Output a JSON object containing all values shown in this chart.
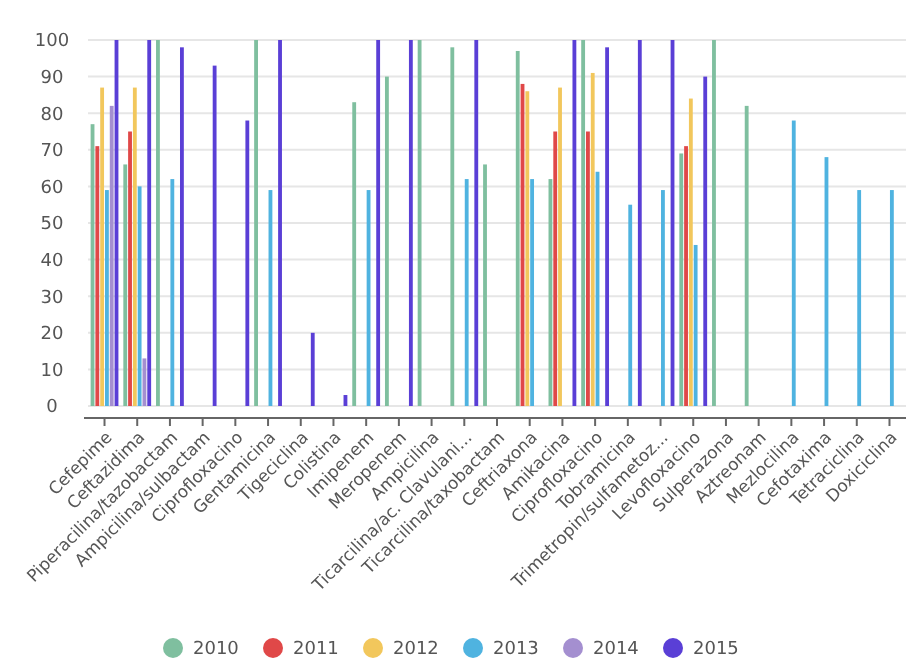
{
  "chart_data": {
    "type": "bar",
    "categories": [
      "Cefepime",
      "Ceftazidima",
      "Piperacilina/tazobactam",
      "Ampicilina/sulbactam",
      "Ciprofloxacino",
      "Gentamicina",
      "Tigeciclina",
      "Colistina",
      "Imipenem",
      "Meropenem",
      "Ampicilina",
      "Ticarcilina/ac. Clavulani...",
      "Ticarcilina/taxobactam",
      "Ceftriaxona",
      "Amikacina",
      "Ciprofloxacino",
      "Tobramicina",
      "Trimetropin/sulfametoz...",
      "Levofloxacino",
      "Sulperazona",
      "Aztreonam",
      "Mezlocilina",
      "Cefotaxima",
      "Tetraciclina",
      "Doxiciclina"
    ],
    "series": [
      {
        "name": "2010",
        "color": "#7fbf9f",
        "values": [
          77,
          66,
          100,
          null,
          null,
          100,
          null,
          null,
          83,
          90,
          100,
          98,
          66,
          97,
          62,
          100,
          null,
          null,
          69,
          100,
          82,
          null,
          null,
          null,
          null
        ]
      },
      {
        "name": "2011",
        "color": "#e04848",
        "values": [
          71,
          75,
          null,
          null,
          null,
          null,
          null,
          null,
          null,
          null,
          null,
          null,
          null,
          88,
          75,
          75,
          null,
          null,
          71,
          null,
          null,
          null,
          null,
          null,
          null
        ]
      },
      {
        "name": "2012",
        "color": "#f2c75c",
        "values": [
          87,
          87,
          null,
          null,
          null,
          null,
          null,
          null,
          null,
          null,
          null,
          null,
          null,
          86,
          87,
          91,
          null,
          null,
          84,
          null,
          null,
          null,
          null,
          null,
          null
        ]
      },
      {
        "name": "2013",
        "color": "#4fb3e0",
        "values": [
          59,
          60,
          62,
          null,
          null,
          59,
          null,
          null,
          59,
          null,
          null,
          62,
          null,
          62,
          null,
          64,
          55,
          59,
          44,
          null,
          null,
          78,
          68,
          59,
          59
        ]
      },
      {
        "name": "2014",
        "color": "#a48fd0",
        "values": [
          82,
          13,
          null,
          null,
          null,
          null,
          null,
          null,
          null,
          null,
          null,
          null,
          null,
          null,
          null,
          null,
          null,
          null,
          null,
          null,
          null,
          null,
          null,
          null,
          null
        ]
      },
      {
        "name": "2015",
        "color": "#5a3fd6",
        "values": [
          100,
          100,
          98,
          93,
          78,
          100,
          20,
          3,
          100,
          100,
          null,
          100,
          null,
          null,
          100,
          98,
          100,
          100,
          90,
          null,
          null,
          null,
          null,
          null,
          null
        ]
      }
    ],
    "ylim": [
      0,
      100
    ],
    "yticks": [
      0,
      10,
      20,
      30,
      40,
      50,
      60,
      70,
      80,
      90,
      100
    ],
    "grid": "y",
    "legend": "bottom"
  }
}
